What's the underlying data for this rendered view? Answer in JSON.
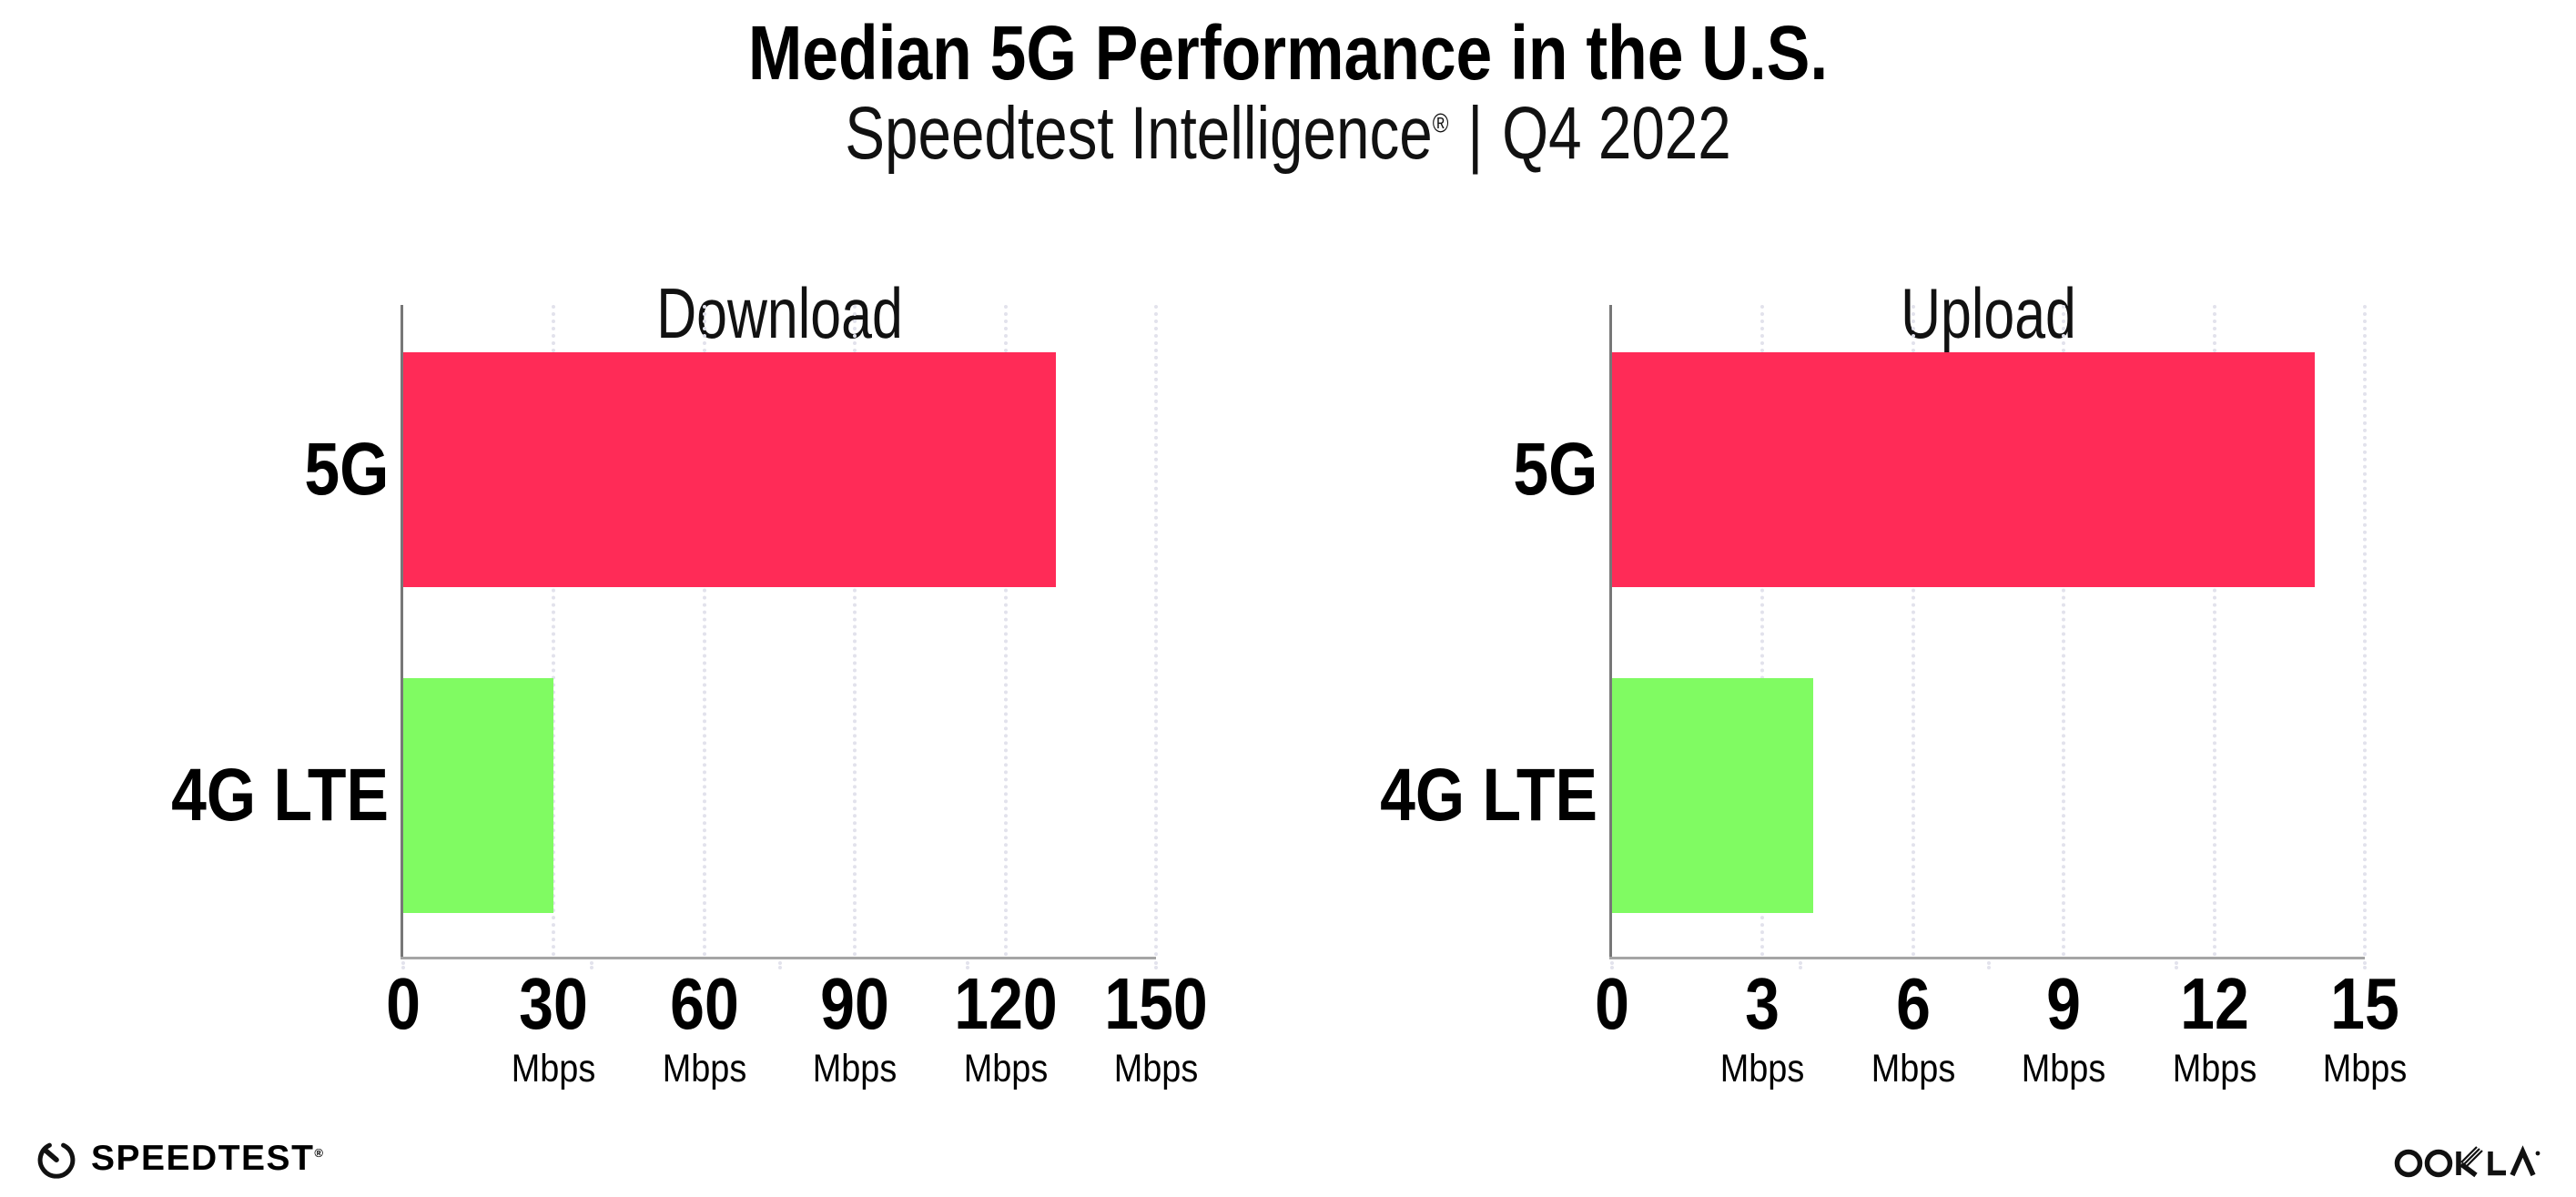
{
  "title": "Median 5G Performance in the U.S.",
  "subtitle": {
    "brand": "Speedtest Intelligence",
    "registered_mark": "®",
    "separator": "|",
    "period": "Q4 2022"
  },
  "chart_data": {
    "type": "bar",
    "orientation": "horizontal",
    "title": "Median 5G Performance in the U.S.",
    "subtitle": "Speedtest Intelligence® | Q4 2022",
    "grid": "vertical-dotted",
    "legend": "none",
    "panels": [
      {
        "title": "Download",
        "categories": [
          "5G",
          "4G LTE"
        ],
        "values": [
          130,
          30
        ],
        "unit": "Mbps",
        "xlim": [
          0,
          150
        ],
        "xticks": [
          0,
          30,
          60,
          90,
          120,
          150
        ]
      },
      {
        "title": "Upload",
        "categories": [
          "5G",
          "4G LTE"
        ],
        "values": [
          14,
          4
        ],
        "unit": "Mbps",
        "xlim": [
          0,
          15
        ],
        "xticks": [
          0,
          3,
          6,
          9,
          12,
          15
        ]
      }
    ],
    "series_colors": {
      "5G": "#FF2B57",
      "4G LTE": "#80FB62"
    }
  },
  "colors": {
    "bar_5g": "#FF2B57",
    "bar_4g": "#80FB62",
    "gridline": "#E2E2EC",
    "x_axis": "#A5A5A5",
    "y_axis": "#777777",
    "text": "#000000",
    "background": "#FFFFFF"
  },
  "footer": {
    "speedtest_wordmark": "SPEEDTEST",
    "speedtest_mark": "®",
    "speedtest_icon": "speedtest-gauge-icon",
    "ookla_wordmark": "OOKLA",
    "ookla_mark": "®"
  }
}
